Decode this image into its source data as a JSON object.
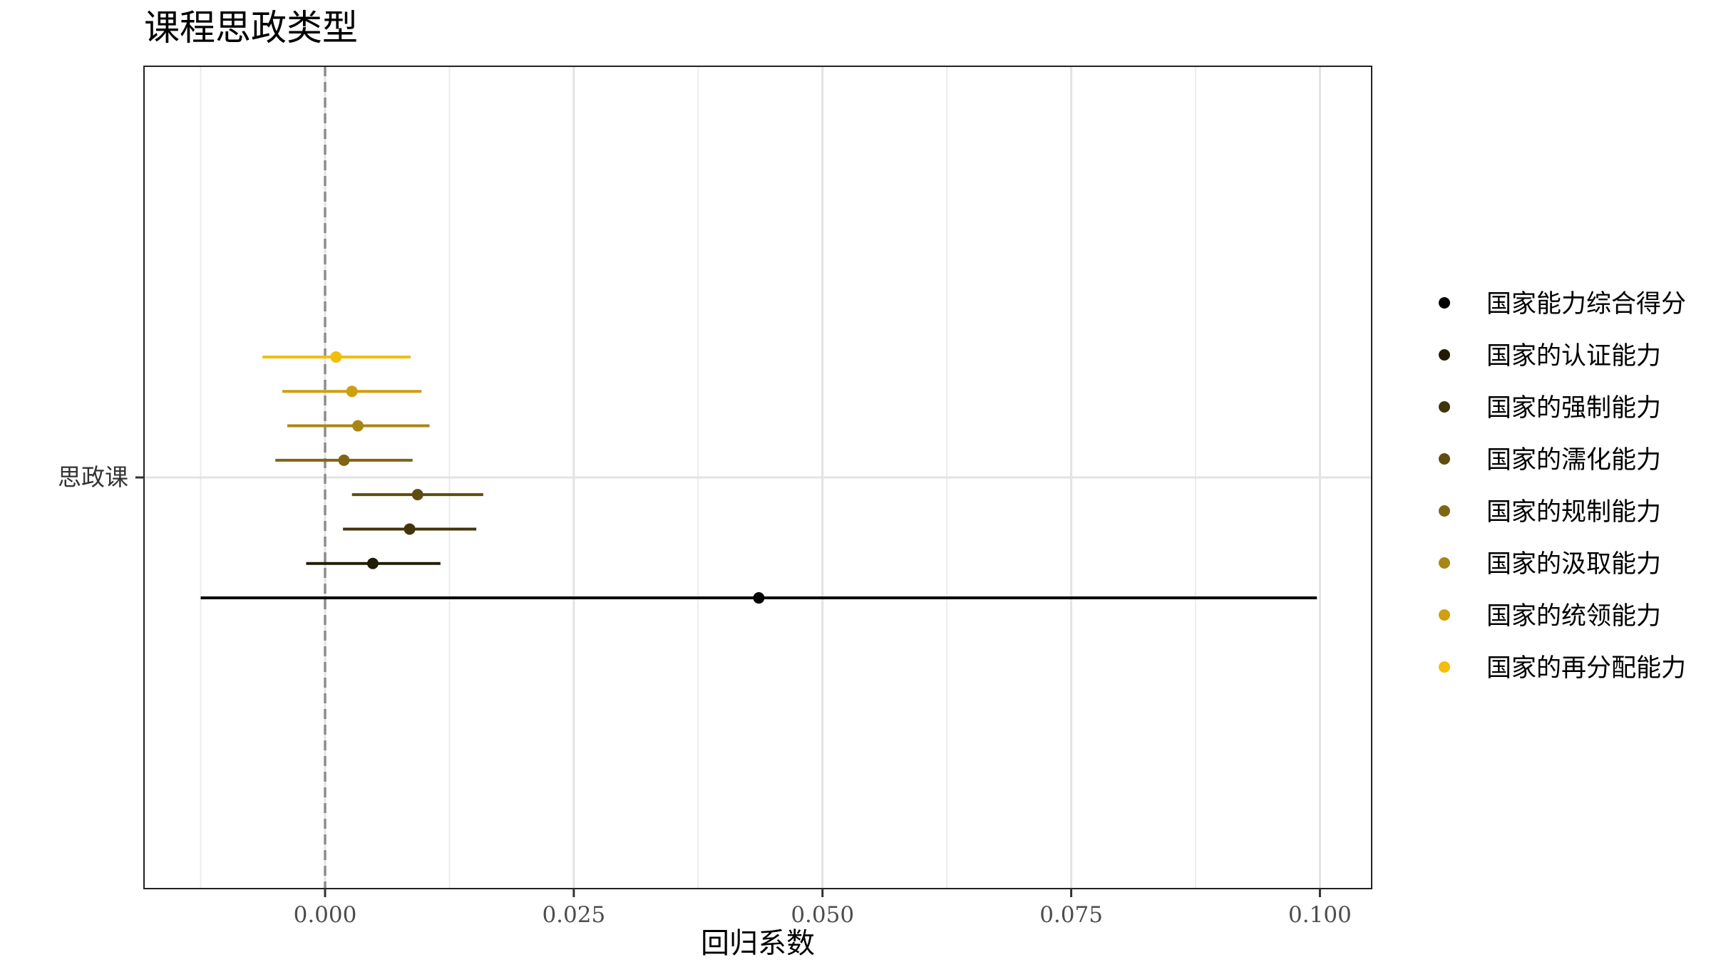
{
  "chart_data": {
    "type": "scatter",
    "subtype": "coefficient-plot-with-error-bars",
    "title": "课程思政类型",
    "xlabel": "回归系数",
    "ylabel": "",
    "y_category": "思政课",
    "xlim": [
      -0.0182,
      0.1052
    ],
    "x_ticks": [
      0.0,
      0.025,
      0.05,
      0.075,
      0.1
    ],
    "x_tick_labels": [
      "0.000",
      "0.025",
      "0.050",
      "0.075",
      "0.100"
    ],
    "reference_line": {
      "x": 0.0,
      "style": "dashed",
      "color": "#8c8c8c"
    },
    "grid": true,
    "legend_position": "right",
    "series": [
      {
        "name": "国家能力综合得分",
        "color": "#000000",
        "estimate": 0.0436,
        "lower": -0.0125,
        "upper": 0.0997
      },
      {
        "name": "国家的认证能力",
        "color": "#211b06",
        "estimate": 0.0048,
        "lower": -0.0019,
        "upper": 0.0116
      },
      {
        "name": "国家的强制能力",
        "color": "#40340a",
        "estimate": 0.0085,
        "lower": 0.0018,
        "upper": 0.0152
      },
      {
        "name": "国家的濡化能力",
        "color": "#5f4d0f",
        "estimate": 0.0093,
        "lower": 0.0027,
        "upper": 0.0159
      },
      {
        "name": "国家的规制能力",
        "color": "#7e6614",
        "estimate": 0.0019,
        "lower": -0.005,
        "upper": 0.0088
      },
      {
        "name": "国家的汲取能力",
        "color": "#a88616",
        "estimate": 0.0033,
        "lower": -0.0038,
        "upper": 0.0105
      },
      {
        "name": "国家的统领能力",
        "color": "#d09f0f",
        "estimate": 0.0027,
        "lower": -0.0043,
        "upper": 0.0097
      },
      {
        "name": "国家的再分配能力",
        "color": "#f5bd09",
        "estimate": 0.0011,
        "lower": -0.0063,
        "upper": 0.0086
      }
    ]
  }
}
